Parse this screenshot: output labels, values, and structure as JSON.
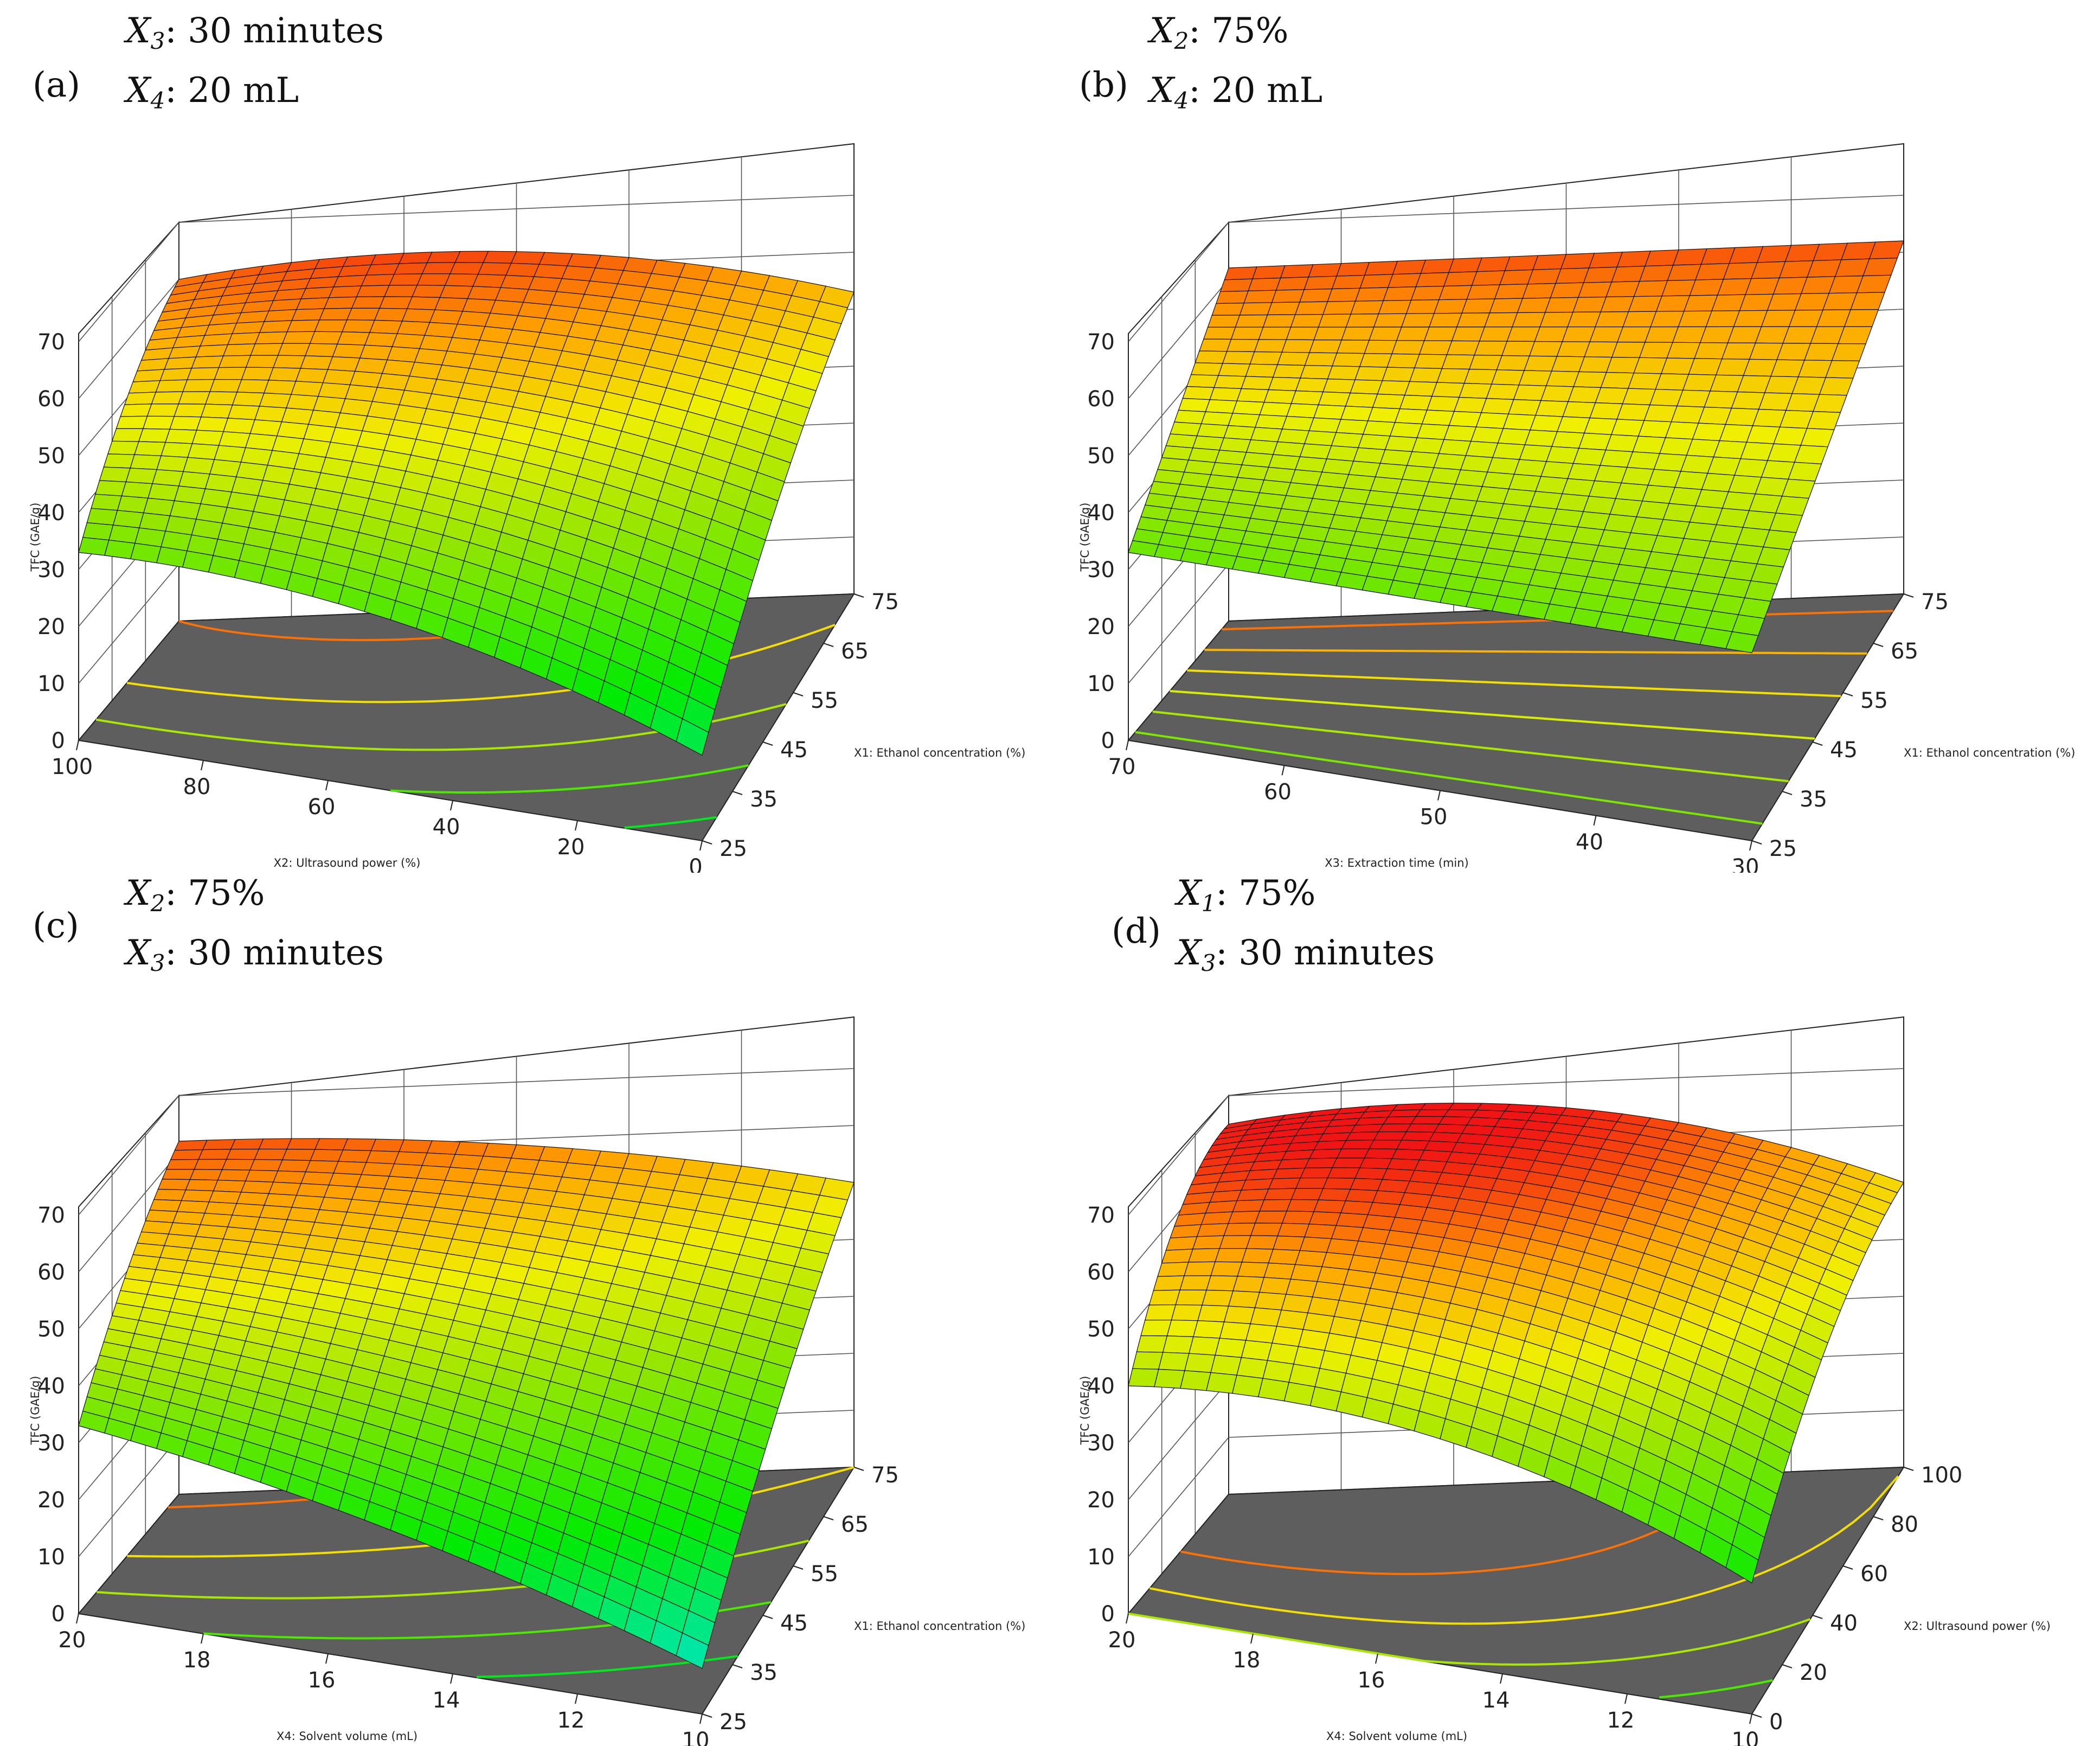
{
  "chart_data": [
    {
      "panel": "(a)",
      "type": "surface3d",
      "conditions": [
        "X3: 30 minutes",
        "X4: 20 mL"
      ],
      "zlabel": "TFC (GAE/g)",
      "zticks": [
        "0",
        "10",
        "20",
        "30",
        "40",
        "50",
        "60",
        "70"
      ],
      "zlim": [
        0,
        70
      ],
      "xlabel": "X1: Ethanol concentration (%)",
      "xticks": [
        "25",
        "35",
        "45",
        "55",
        "65",
        "75"
      ],
      "ylabel": "X2: Ultrasound power (%)",
      "yticks": [
        "0",
        "20",
        "40",
        "60",
        "80",
        "100"
      ],
      "corner_values": {
        "x1_high_y_high": 60,
        "x1_high_y_low": 53,
        "x1_low_y_high": 33,
        "x1_low_y_low": 15
      },
      "contour_levels": [
        20,
        30,
        40,
        50,
        60
      ]
    },
    {
      "panel": "(b)",
      "type": "surface3d",
      "conditions": [
        "X2: 75%",
        "X4: 20 mL"
      ],
      "zlabel": "TFC (GAE/g)",
      "zticks": [
        "0",
        "10",
        "20",
        "30",
        "40",
        "50",
        "60",
        "70"
      ],
      "zlim": [
        0,
        70
      ],
      "xlabel": "X1: Ethanol concentration (%)",
      "xticks": [
        "25",
        "35",
        "45",
        "55",
        "65",
        "75"
      ],
      "ylabel": "X3: Extraction time (min)",
      "yticks": [
        "30",
        "40",
        "50",
        "60",
        "70"
      ],
      "corner_values": {
        "x1_high_y_high": 62,
        "x1_high_y_low": 62,
        "x1_low_y_high": 33,
        "x1_low_y_low": 33
      },
      "contour_levels": [
        35,
        40,
        45,
        50,
        55,
        60
      ]
    },
    {
      "panel": "(c)",
      "type": "surface3d",
      "conditions": [
        "X2: 75%",
        "X3: 30 minutes"
      ],
      "zlabel": "TFC (GAE/g)",
      "zticks": [
        "0",
        "10",
        "20",
        "30",
        "40",
        "50",
        "60",
        "70"
      ],
      "zlim": [
        0,
        70
      ],
      "xlabel": "X1: Ethanol concentration (%)",
      "xticks": [
        "25",
        "35",
        "45",
        "55",
        "65",
        "75"
      ],
      "ylabel": "X4: Solvent volume (mL)",
      "yticks": [
        "10",
        "12",
        "14",
        "16",
        "18",
        "20"
      ],
      "corner_values": {
        "x1_high_y_high": 62,
        "x1_high_y_low": 50,
        "x1_low_y_high": 33,
        "x1_low_y_low": 8
      },
      "contour_levels": [
        20,
        30,
        40,
        50,
        60
      ]
    },
    {
      "panel": "(d)",
      "type": "surface3d",
      "conditions": [
        "X1: 75%",
        "X3: 30 minutes"
      ],
      "zlabel": "TFC (GAE/g)",
      "zticks": [
        "0",
        "10",
        "20",
        "30",
        "40",
        "50",
        "60",
        "70"
      ],
      "zlim": [
        0,
        70
      ],
      "xlabel": "X2: Ultrasound power (%)",
      "xticks": [
        "0",
        "20",
        "40",
        "60",
        "80",
        "100"
      ],
      "ylabel": "X4: Solvent volume (mL)",
      "yticks": [
        "10",
        "12",
        "14",
        "16",
        "18",
        "20"
      ],
      "corner_values": {
        "x1_high_y_high": 65,
        "x1_high_y_low": 50,
        "x1_low_y_high": 40,
        "x1_low_y_low": 23
      },
      "contour_levels": [
        30,
        40,
        50,
        60
      ]
    }
  ]
}
